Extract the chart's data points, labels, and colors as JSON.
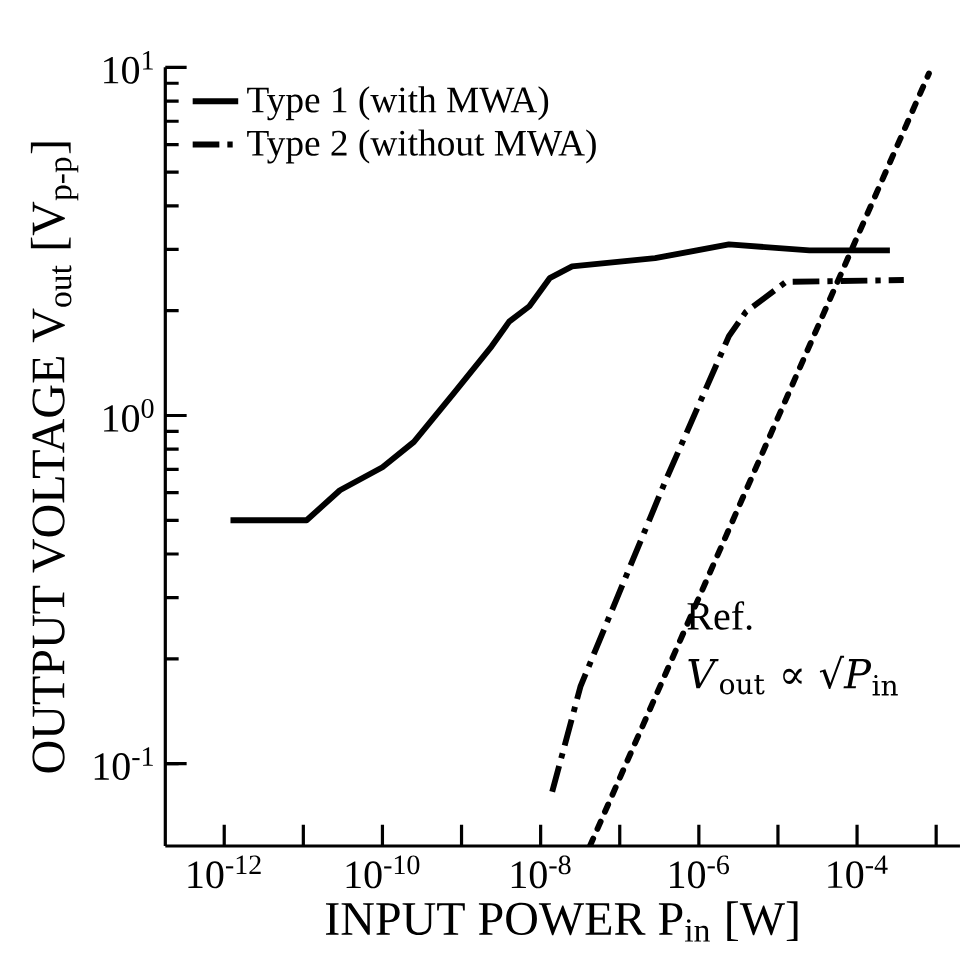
{
  "chart_data": {
    "type": "line",
    "xlabel": "INPUT POWER  P$_{in}$ [W]",
    "ylabel": "OUTPUT VOLTAGE  V$_{out}$ [V$_{p-p}$]",
    "log": "xy",
    "grid": false,
    "legend": "top left",
    "xlim": [
      1.8e-13,
      0.002
    ],
    "ylim": [
      0.058,
      10
    ],
    "xticks": [
      {
        "value": 1e-12,
        "label": "10$^{-12}$"
      },
      {
        "value": 1e-11,
        "label": null
      },
      {
        "value": 1e-10,
        "label": "10$^{-10}$"
      },
      {
        "value": 1e-09,
        "label": null
      },
      {
        "value": 1e-08,
        "label": "10$^{-8}$"
      },
      {
        "value": 1e-07,
        "label": null
      },
      {
        "value": 1e-06,
        "label": "10$^{-6}$"
      },
      {
        "value": 1e-05,
        "label": null
      },
      {
        "value": 0.0001,
        "label": "10$^{-4}$"
      },
      {
        "value": 0.001,
        "label": null
      }
    ],
    "yticks": [
      {
        "value": 0.1,
        "label": "10$^{-1}$"
      },
      {
        "value": 1,
        "label": "10$^{0}$"
      },
      {
        "value": 10,
        "label": "10$^{1}$"
      }
    ],
    "series": [
      {
        "name": "Type 1 (with MWA)",
        "color": "#000000",
        "line_style": "solid",
        "x": [
          1.2e-12,
          1.1e-11,
          2.9e-11,
          1e-10,
          2.5e-10,
          8e-10,
          2.4e-09,
          4e-09,
          7.2e-09,
          1.3e-08,
          2.5e-08,
          2.8e-07,
          2.4e-06,
          2.5e-05,
          0.00026
        ],
        "values": [
          0.5,
          0.5,
          0.61,
          0.71,
          0.84,
          1.16,
          1.58,
          1.86,
          2.06,
          2.48,
          2.68,
          2.83,
          3.1,
          2.98,
          2.98
        ]
      },
      {
        "name": "Type 2 (without MWA)",
        "color": "#000000",
        "line_style": "dashdot",
        "x": [
          1.4e-08,
          3.2e-08,
          3.8e-07,
          2.4e-06,
          3.9e-06,
          1.26e-05,
          0.00039
        ],
        "values": [
          0.083,
          0.167,
          0.65,
          1.69,
          1.98,
          2.42,
          2.45
        ]
      },
      {
        "color": "#000000",
        "line_style": "dotted",
        "x": [
          4.2e-08,
          0.00081
        ],
        "values": [
          0.058,
          9.6
        ]
      }
    ],
    "annotations": [
      "Ref.",
      "*V*$_{out}$ ∝ √*P*$_{in}$"
    ]
  }
}
